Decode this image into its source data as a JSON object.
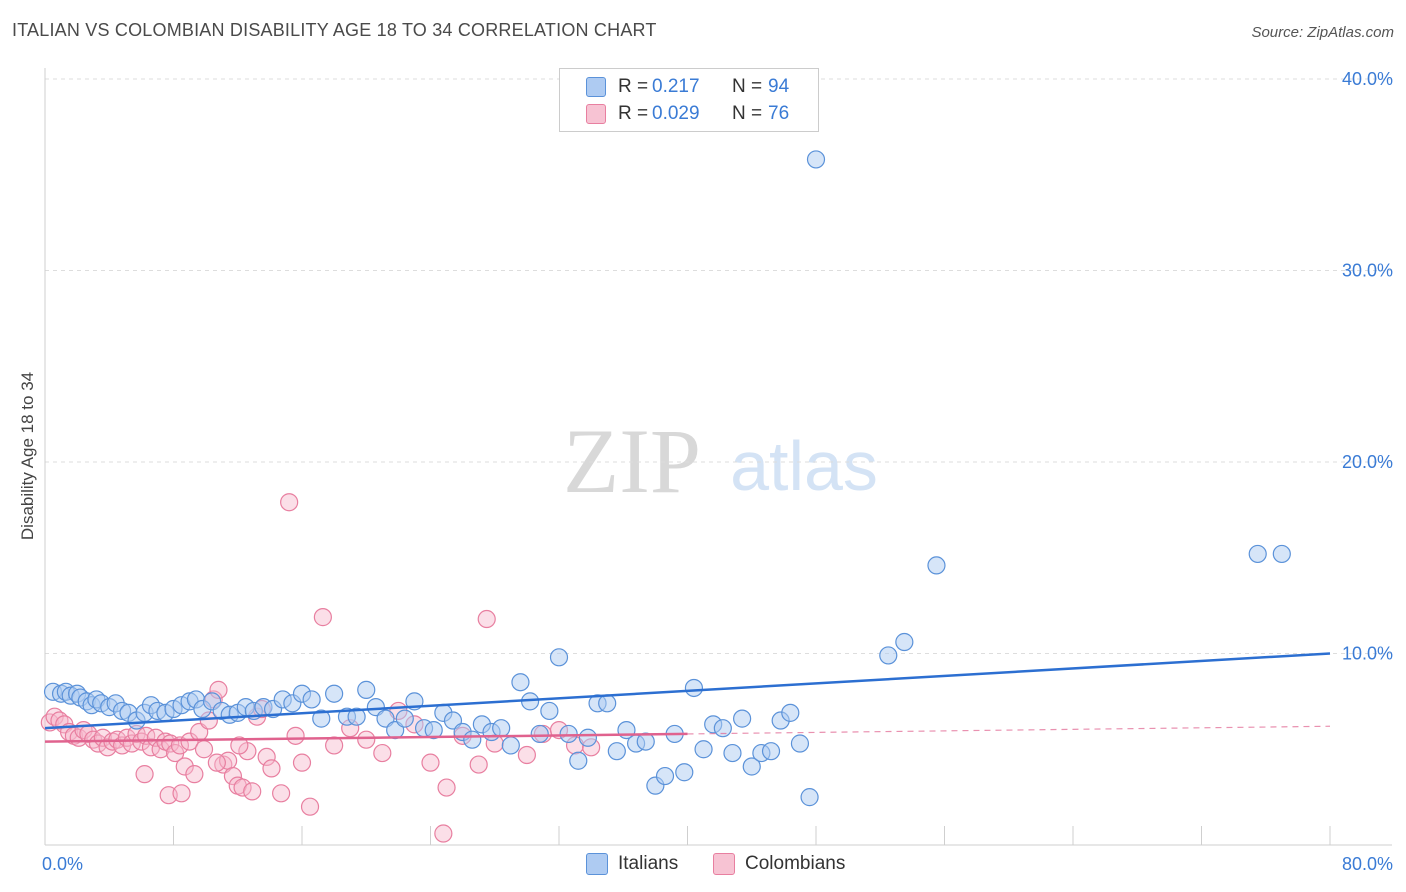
{
  "header": {
    "title": "ITALIAN VS COLOMBIAN DISABILITY AGE 18 TO 34 CORRELATION CHART",
    "source": "Source: ZipAtlas.com"
  },
  "watermark": {
    "zip": "ZIP",
    "atlas": "atlas"
  },
  "legend_top": {
    "italians": {
      "r_label": "R =",
      "r_value": "0.217",
      "n_label": "N =",
      "n_value": "94"
    },
    "colombians": {
      "r_label": "R =",
      "r_value": "0.029",
      "n_label": "N =",
      "n_value": "76"
    }
  },
  "legend_bottom": {
    "italians": "Italians",
    "colombians": "Colombians"
  },
  "colors": {
    "italians_fill": "#aecbf2",
    "italians_stroke": "#5b92d9",
    "italians_line": "#2c6fd1",
    "colombians_fill": "#f7b8cb",
    "colombians_stroke": "#e87fa0",
    "colombians_line": "#e0628e",
    "axis_label": "#3a7bd5",
    "grid": "#dddddd"
  },
  "chart_data": {
    "type": "scatter",
    "title": "ITALIAN VS COLOMBIAN DISABILITY AGE 18 TO 34 CORRELATION CHART",
    "xlabel": "",
    "ylabel": "Disability Age 18 to 34",
    "xlim": [
      0,
      80
    ],
    "ylim": [
      0,
      40
    ],
    "x_tick_labels": [
      "0.0%",
      "80.0%"
    ],
    "y_ticks": [
      10,
      20,
      30,
      40
    ],
    "y_tick_labels": [
      "10.0%",
      "20.0%",
      "30.0%",
      "40.0%"
    ],
    "grid": true,
    "series": [
      {
        "name": "Italians",
        "r": 0.217,
        "n": 94,
        "trend": {
          "x": [
            0,
            80
          ],
          "y": [
            6.1,
            10.0
          ]
        },
        "points": [
          [
            0.5,
            8.0
          ],
          [
            1.0,
            7.9
          ],
          [
            1.3,
            8.0
          ],
          [
            1.6,
            7.8
          ],
          [
            2.0,
            7.9
          ],
          [
            2.2,
            7.7
          ],
          [
            2.6,
            7.5
          ],
          [
            2.9,
            7.3
          ],
          [
            3.2,
            7.6
          ],
          [
            3.5,
            7.4
          ],
          [
            4.0,
            7.2
          ],
          [
            4.4,
            7.4
          ],
          [
            4.8,
            7.0
          ],
          [
            5.2,
            6.9
          ],
          [
            5.7,
            6.5
          ],
          [
            6.2,
            6.9
          ],
          [
            6.6,
            7.3
          ],
          [
            7.0,
            7.0
          ],
          [
            7.5,
            6.9
          ],
          [
            8.0,
            7.1
          ],
          [
            8.5,
            7.3
          ],
          [
            9.0,
            7.5
          ],
          [
            9.4,
            7.6
          ],
          [
            9.8,
            7.1
          ],
          [
            10.4,
            7.5
          ],
          [
            11.0,
            7.0
          ],
          [
            11.5,
            6.8
          ],
          [
            12.0,
            6.9
          ],
          [
            12.5,
            7.2
          ],
          [
            13.0,
            7.0
          ],
          [
            13.6,
            7.2
          ],
          [
            14.2,
            7.1
          ],
          [
            14.8,
            7.6
          ],
          [
            15.4,
            7.4
          ],
          [
            16.0,
            7.9
          ],
          [
            16.6,
            7.6
          ],
          [
            17.2,
            6.6
          ],
          [
            18.0,
            7.9
          ],
          [
            18.8,
            6.7
          ],
          [
            19.4,
            6.7
          ],
          [
            20.0,
            8.1
          ],
          [
            20.6,
            7.2
          ],
          [
            21.2,
            6.6
          ],
          [
            21.8,
            6.0
          ],
          [
            22.4,
            6.6
          ],
          [
            23.0,
            7.5
          ],
          [
            23.6,
            6.1
          ],
          [
            24.2,
            6.0
          ],
          [
            24.8,
            6.9
          ],
          [
            25.4,
            6.5
          ],
          [
            26.0,
            5.9
          ],
          [
            26.6,
            5.5
          ],
          [
            27.2,
            6.3
          ],
          [
            27.8,
            5.9
          ],
          [
            28.4,
            6.1
          ],
          [
            29.0,
            5.2
          ],
          [
            29.6,
            8.5
          ],
          [
            30.2,
            7.5
          ],
          [
            30.8,
            5.8
          ],
          [
            31.4,
            7.0
          ],
          [
            32.0,
            9.8
          ],
          [
            32.6,
            5.8
          ],
          [
            33.2,
            4.4
          ],
          [
            33.8,
            5.6
          ],
          [
            34.4,
            7.4
          ],
          [
            35.0,
            7.4
          ],
          [
            35.6,
            4.9
          ],
          [
            36.2,
            6.0
          ],
          [
            36.8,
            5.3
          ],
          [
            37.4,
            5.4
          ],
          [
            38.0,
            3.1
          ],
          [
            38.6,
            3.6
          ],
          [
            39.2,
            5.8
          ],
          [
            39.8,
            3.8
          ],
          [
            40.4,
            8.2
          ],
          [
            41.0,
            5.0
          ],
          [
            41.6,
            6.3
          ],
          [
            42.2,
            6.1
          ],
          [
            42.8,
            4.8
          ],
          [
            43.4,
            6.6
          ],
          [
            44.0,
            4.1
          ],
          [
            44.6,
            4.8
          ],
          [
            45.2,
            4.9
          ],
          [
            45.8,
            6.5
          ],
          [
            46.4,
            6.9
          ],
          [
            47.0,
            5.3
          ],
          [
            47.6,
            2.5
          ],
          [
            48.0,
            35.8
          ],
          [
            52.5,
            9.9
          ],
          [
            53.5,
            10.6
          ],
          [
            55.5,
            14.6
          ],
          [
            75.5,
            15.2
          ],
          [
            77.0,
            15.2
          ]
        ]
      },
      {
        "name": "Colombians",
        "r": 0.029,
        "n": 76,
        "trend": {
          "x": [
            0,
            40
          ],
          "y": [
            5.4,
            5.8
          ]
        },
        "trend_dashed": {
          "x": [
            40,
            80
          ],
          "y": [
            5.8,
            6.2
          ]
        },
        "points": [
          [
            0.3,
            6.4
          ],
          [
            0.6,
            6.7
          ],
          [
            0.9,
            6.5
          ],
          [
            1.2,
            6.3
          ],
          [
            1.5,
            5.9
          ],
          [
            1.8,
            5.7
          ],
          [
            2.1,
            5.6
          ],
          [
            2.4,
            6.0
          ],
          [
            2.7,
            5.8
          ],
          [
            3.0,
            5.5
          ],
          [
            3.3,
            5.3
          ],
          [
            3.6,
            5.6
          ],
          [
            3.9,
            5.1
          ],
          [
            4.2,
            5.4
          ],
          [
            4.5,
            5.5
          ],
          [
            4.8,
            5.2
          ],
          [
            5.1,
            5.6
          ],
          [
            5.4,
            5.3
          ],
          [
            5.7,
            5.8
          ],
          [
            6.0,
            5.4
          ],
          [
            6.3,
            5.7
          ],
          [
            6.6,
            5.1
          ],
          [
            6.9,
            5.6
          ],
          [
            7.2,
            5.0
          ],
          [
            7.5,
            5.4
          ],
          [
            7.8,
            5.3
          ],
          [
            8.1,
            4.8
          ],
          [
            8.4,
            5.2
          ],
          [
            8.7,
            4.1
          ],
          [
            9.0,
            5.4
          ],
          [
            9.3,
            3.7
          ],
          [
            9.6,
            5.9
          ],
          [
            9.9,
            5.0
          ],
          [
            10.2,
            6.5
          ],
          [
            10.5,
            7.6
          ],
          [
            10.8,
            8.1
          ],
          [
            11.1,
            4.2
          ],
          [
            11.4,
            4.4
          ],
          [
            11.7,
            3.6
          ],
          [
            12.0,
            3.1
          ],
          [
            12.3,
            3.0
          ],
          [
            12.6,
            4.9
          ],
          [
            12.9,
            2.8
          ],
          [
            13.2,
            6.7
          ],
          [
            13.5,
            7.1
          ],
          [
            13.8,
            4.6
          ],
          [
            14.1,
            4.0
          ],
          [
            14.7,
            2.7
          ],
          [
            15.2,
            17.9
          ],
          [
            15.6,
            5.7
          ],
          [
            16.0,
            4.3
          ],
          [
            16.5,
            2.0
          ],
          [
            17.3,
            11.9
          ],
          [
            18.0,
            5.2
          ],
          [
            19.0,
            6.1
          ],
          [
            20.0,
            5.5
          ],
          [
            21.0,
            4.8
          ],
          [
            22.0,
            7.0
          ],
          [
            23.0,
            6.3
          ],
          [
            24.0,
            4.3
          ],
          [
            25.0,
            3.0
          ],
          [
            26.0,
            5.7
          ],
          [
            27.0,
            4.2
          ],
          [
            27.5,
            11.8
          ],
          [
            28.0,
            5.3
          ],
          [
            30.0,
            4.7
          ],
          [
            31.0,
            5.8
          ],
          [
            32.0,
            6.0
          ],
          [
            33.0,
            5.2
          ],
          [
            34.0,
            5.1
          ],
          [
            24.8,
            0.6
          ],
          [
            6.2,
            3.7
          ],
          [
            7.7,
            2.6
          ],
          [
            8.5,
            2.7
          ],
          [
            10.7,
            4.3
          ],
          [
            12.1,
            5.2
          ]
        ]
      }
    ]
  }
}
